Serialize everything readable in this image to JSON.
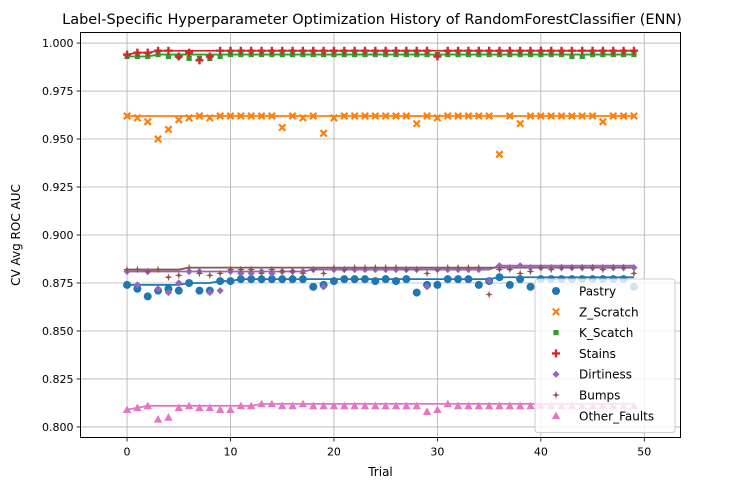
{
  "chart_data": {
    "type": "scatter",
    "title": "Label-Specific Hyperparameter Optimization History of RandomForestClassifier (ENN)",
    "xlabel": "Trial",
    "ylabel": "CV Avg ROC AUC",
    "xlim": [
      -4.5,
      53.5
    ],
    "ylim": [
      0.7945,
      1.0055
    ],
    "xticks": [
      0,
      10,
      20,
      30,
      40,
      50
    ],
    "xtick_labels": [
      "0",
      "10",
      "20",
      "30",
      "40",
      "50"
    ],
    "yticks": [
      0.8,
      0.825,
      0.85,
      0.875,
      0.9,
      0.925,
      0.95,
      0.975,
      1.0
    ],
    "ytick_labels": [
      "0.800",
      "0.825",
      "0.850",
      "0.875",
      "0.900",
      "0.925",
      "0.950",
      "0.975",
      "1.000"
    ],
    "grid": true,
    "legend_position": "lower-right",
    "x": [
      0,
      1,
      2,
      3,
      4,
      5,
      6,
      7,
      8,
      9,
      10,
      11,
      12,
      13,
      14,
      15,
      16,
      17,
      18,
      19,
      20,
      21,
      22,
      23,
      24,
      25,
      26,
      27,
      28,
      29,
      30,
      31,
      32,
      33,
      34,
      35,
      36,
      37,
      38,
      39,
      40,
      41,
      42,
      43,
      44,
      45,
      46,
      47,
      48,
      49
    ],
    "series": [
      {
        "name": "Pastry",
        "color": "#1f77b4",
        "marker": "circle",
        "values": [
          0.874,
          0.872,
          0.868,
          0.871,
          0.872,
          0.871,
          0.875,
          0.871,
          0.871,
          0.876,
          0.876,
          0.877,
          0.877,
          0.877,
          0.877,
          0.877,
          0.877,
          0.877,
          0.873,
          0.874,
          0.876,
          0.877,
          0.877,
          0.877,
          0.876,
          0.877,
          0.876,
          0.877,
          0.87,
          0.874,
          0.874,
          0.877,
          0.877,
          0.877,
          0.874,
          0.876,
          0.878,
          0.874,
          0.877,
          0.873,
          0.877,
          0.877,
          0.877,
          0.877,
          0.877,
          0.877,
          0.877,
          0.877,
          0.877,
          0.873
        ],
        "best": [
          0.874,
          0.874,
          0.874,
          0.874,
          0.874,
          0.874,
          0.875,
          0.875,
          0.875,
          0.876,
          0.876,
          0.877,
          0.877,
          0.877,
          0.877,
          0.877,
          0.877,
          0.877,
          0.877,
          0.877,
          0.877,
          0.877,
          0.877,
          0.877,
          0.877,
          0.877,
          0.877,
          0.877,
          0.877,
          0.877,
          0.877,
          0.877,
          0.877,
          0.877,
          0.877,
          0.877,
          0.878,
          0.878,
          0.878,
          0.878,
          0.878,
          0.878,
          0.878,
          0.878,
          0.878,
          0.878,
          0.878,
          0.878,
          0.878,
          0.878
        ]
      },
      {
        "name": "Z_Scratch",
        "color": "#ff7f0e",
        "marker": "x",
        "values": [
          0.962,
          0.961,
          0.959,
          0.95,
          0.955,
          0.96,
          0.961,
          0.962,
          0.961,
          0.962,
          0.962,
          0.962,
          0.962,
          0.962,
          0.962,
          0.956,
          0.962,
          0.961,
          0.962,
          0.953,
          0.961,
          0.962,
          0.962,
          0.962,
          0.962,
          0.962,
          0.962,
          0.962,
          0.958,
          0.962,
          0.961,
          0.962,
          0.962,
          0.962,
          0.962,
          0.962,
          0.942,
          0.962,
          0.958,
          0.962,
          0.962,
          0.962,
          0.962,
          0.962,
          0.962,
          0.962,
          0.959,
          0.962,
          0.962,
          0.962
        ],
        "best": [
          0.962,
          0.962,
          0.962,
          0.962,
          0.962,
          0.962,
          0.962,
          0.962,
          0.962,
          0.962,
          0.962,
          0.962,
          0.962,
          0.962,
          0.962,
          0.962,
          0.962,
          0.962,
          0.962,
          0.962,
          0.962,
          0.962,
          0.962,
          0.962,
          0.962,
          0.962,
          0.962,
          0.962,
          0.962,
          0.962,
          0.962,
          0.962,
          0.962,
          0.962,
          0.962,
          0.962,
          0.962,
          0.962,
          0.962,
          0.962,
          0.962,
          0.962,
          0.962,
          0.962,
          0.962,
          0.962,
          0.962,
          0.962,
          0.962,
          0.962
        ]
      },
      {
        "name": "K_Scatch",
        "color": "#2ca02c",
        "marker": "square",
        "values": [
          0.993,
          0.993,
          0.993,
          0.994,
          0.993,
          0.993,
          0.992,
          0.992,
          0.992,
          0.993,
          0.994,
          0.994,
          0.994,
          0.994,
          0.994,
          0.994,
          0.994,
          0.994,
          0.994,
          0.994,
          0.994,
          0.994,
          0.994,
          0.994,
          0.994,
          0.994,
          0.994,
          0.994,
          0.994,
          0.994,
          0.994,
          0.994,
          0.994,
          0.994,
          0.994,
          0.994,
          0.994,
          0.994,
          0.994,
          0.994,
          0.994,
          0.994,
          0.994,
          0.993,
          0.993,
          0.994,
          0.994,
          0.994,
          0.994,
          0.994
        ],
        "best": [
          0.993,
          0.993,
          0.993,
          0.994,
          0.994,
          0.994,
          0.994,
          0.994,
          0.994,
          0.994,
          0.994,
          0.994,
          0.994,
          0.994,
          0.994,
          0.994,
          0.994,
          0.994,
          0.994,
          0.994,
          0.994,
          0.994,
          0.994,
          0.994,
          0.994,
          0.994,
          0.994,
          0.994,
          0.994,
          0.994,
          0.994,
          0.994,
          0.994,
          0.994,
          0.994,
          0.994,
          0.994,
          0.994,
          0.994,
          0.994,
          0.994,
          0.994,
          0.994,
          0.994,
          0.994,
          0.994,
          0.994,
          0.994,
          0.994,
          0.994
        ]
      },
      {
        "name": "Stains",
        "color": "#d62728",
        "marker": "plus",
        "values": [
          0.994,
          0.995,
          0.995,
          0.996,
          0.996,
          0.993,
          0.995,
          0.991,
          0.993,
          0.996,
          0.996,
          0.996,
          0.996,
          0.996,
          0.996,
          0.996,
          0.996,
          0.996,
          0.996,
          0.996,
          0.996,
          0.996,
          0.996,
          0.996,
          0.996,
          0.996,
          0.996,
          0.996,
          0.996,
          0.996,
          0.993,
          0.996,
          0.996,
          0.996,
          0.996,
          0.996,
          0.996,
          0.996,
          0.996,
          0.996,
          0.996,
          0.996,
          0.996,
          0.996,
          0.996,
          0.996,
          0.996,
          0.996,
          0.996,
          0.996
        ],
        "best": [
          0.994,
          0.995,
          0.995,
          0.996,
          0.996,
          0.996,
          0.996,
          0.996,
          0.996,
          0.996,
          0.996,
          0.996,
          0.996,
          0.996,
          0.996,
          0.996,
          0.996,
          0.996,
          0.996,
          0.996,
          0.996,
          0.996,
          0.996,
          0.996,
          0.996,
          0.996,
          0.996,
          0.996,
          0.996,
          0.996,
          0.996,
          0.996,
          0.996,
          0.996,
          0.996,
          0.996,
          0.996,
          0.996,
          0.996,
          0.996,
          0.996,
          0.996,
          0.996,
          0.996,
          0.996,
          0.996,
          0.996,
          0.996,
          0.996,
          0.996
        ]
      },
      {
        "name": "Dirtiness",
        "color": "#9467bd",
        "marker": "diamond",
        "values": [
          0.881,
          0.874,
          0.881,
          0.872,
          0.87,
          0.875,
          0.881,
          0.881,
          0.87,
          0.871,
          0.881,
          0.88,
          0.88,
          0.881,
          0.88,
          0.881,
          0.881,
          0.881,
          0.882,
          0.873,
          0.882,
          0.882,
          0.882,
          0.882,
          0.882,
          0.882,
          0.882,
          0.882,
          0.882,
          0.873,
          0.882,
          0.882,
          0.882,
          0.882,
          0.882,
          0.876,
          0.884,
          0.883,
          0.884,
          0.883,
          0.883,
          0.883,
          0.883,
          0.883,
          0.883,
          0.883,
          0.883,
          0.883,
          0.883,
          0.883
        ],
        "best": [
          0.881,
          0.881,
          0.881,
          0.881,
          0.881,
          0.881,
          0.881,
          0.881,
          0.881,
          0.881,
          0.881,
          0.881,
          0.881,
          0.881,
          0.881,
          0.881,
          0.881,
          0.881,
          0.882,
          0.882,
          0.882,
          0.882,
          0.882,
          0.882,
          0.882,
          0.882,
          0.882,
          0.882,
          0.882,
          0.882,
          0.882,
          0.882,
          0.882,
          0.882,
          0.882,
          0.882,
          0.884,
          0.884,
          0.884,
          0.884,
          0.884,
          0.884,
          0.884,
          0.884,
          0.884,
          0.884,
          0.884,
          0.884,
          0.884,
          0.884
        ]
      },
      {
        "name": "Bumps",
        "color": "#8c564b",
        "marker": "star",
        "values": [
          0.882,
          0.882,
          0.881,
          0.882,
          0.878,
          0.879,
          0.883,
          0.88,
          0.879,
          0.88,
          0.882,
          0.882,
          0.882,
          0.88,
          0.882,
          0.881,
          0.881,
          0.88,
          0.882,
          0.88,
          0.883,
          0.882,
          0.883,
          0.883,
          0.883,
          0.883,
          0.883,
          0.882,
          0.882,
          0.88,
          0.882,
          0.883,
          0.883,
          0.883,
          0.883,
          0.869,
          0.882,
          0.882,
          0.88,
          0.881,
          0.883,
          0.882,
          0.883,
          0.883,
          0.883,
          0.883,
          0.882,
          0.883,
          0.883,
          0.88
        ],
        "best": [
          0.882,
          0.882,
          0.882,
          0.882,
          0.882,
          0.882,
          0.883,
          0.883,
          0.883,
          0.883,
          0.883,
          0.883,
          0.883,
          0.883,
          0.883,
          0.883,
          0.883,
          0.883,
          0.883,
          0.883,
          0.883,
          0.883,
          0.883,
          0.883,
          0.883,
          0.883,
          0.883,
          0.883,
          0.883,
          0.883,
          0.883,
          0.883,
          0.883,
          0.883,
          0.883,
          0.883,
          0.883,
          0.883,
          0.883,
          0.883,
          0.883,
          0.883,
          0.883,
          0.883,
          0.883,
          0.883,
          0.883,
          0.883,
          0.883,
          0.883
        ]
      },
      {
        "name": "Other_Faults",
        "color": "#e377c2",
        "marker": "triangle",
        "values": [
          0.809,
          0.81,
          0.811,
          0.804,
          0.805,
          0.81,
          0.811,
          0.81,
          0.81,
          0.809,
          0.809,
          0.811,
          0.811,
          0.812,
          0.812,
          0.811,
          0.811,
          0.812,
          0.811,
          0.811,
          0.811,
          0.811,
          0.811,
          0.811,
          0.811,
          0.811,
          0.811,
          0.811,
          0.811,
          0.808,
          0.809,
          0.812,
          0.811,
          0.811,
          0.811,
          0.811,
          0.811,
          0.811,
          0.811,
          0.811,
          0.811,
          0.811,
          0.811,
          0.811,
          0.811,
          0.811,
          0.811,
          0.811,
          0.811,
          0.811
        ],
        "best": [
          0.809,
          0.81,
          0.811,
          0.811,
          0.811,
          0.811,
          0.811,
          0.811,
          0.811,
          0.811,
          0.811,
          0.811,
          0.811,
          0.812,
          0.812,
          0.812,
          0.812,
          0.812,
          0.812,
          0.812,
          0.812,
          0.812,
          0.812,
          0.812,
          0.812,
          0.812,
          0.812,
          0.812,
          0.812,
          0.812,
          0.812,
          0.812,
          0.812,
          0.812,
          0.812,
          0.812,
          0.812,
          0.812,
          0.812,
          0.812,
          0.812,
          0.812,
          0.812,
          0.812,
          0.812,
          0.812,
          0.812,
          0.812,
          0.812,
          0.812
        ]
      }
    ]
  }
}
